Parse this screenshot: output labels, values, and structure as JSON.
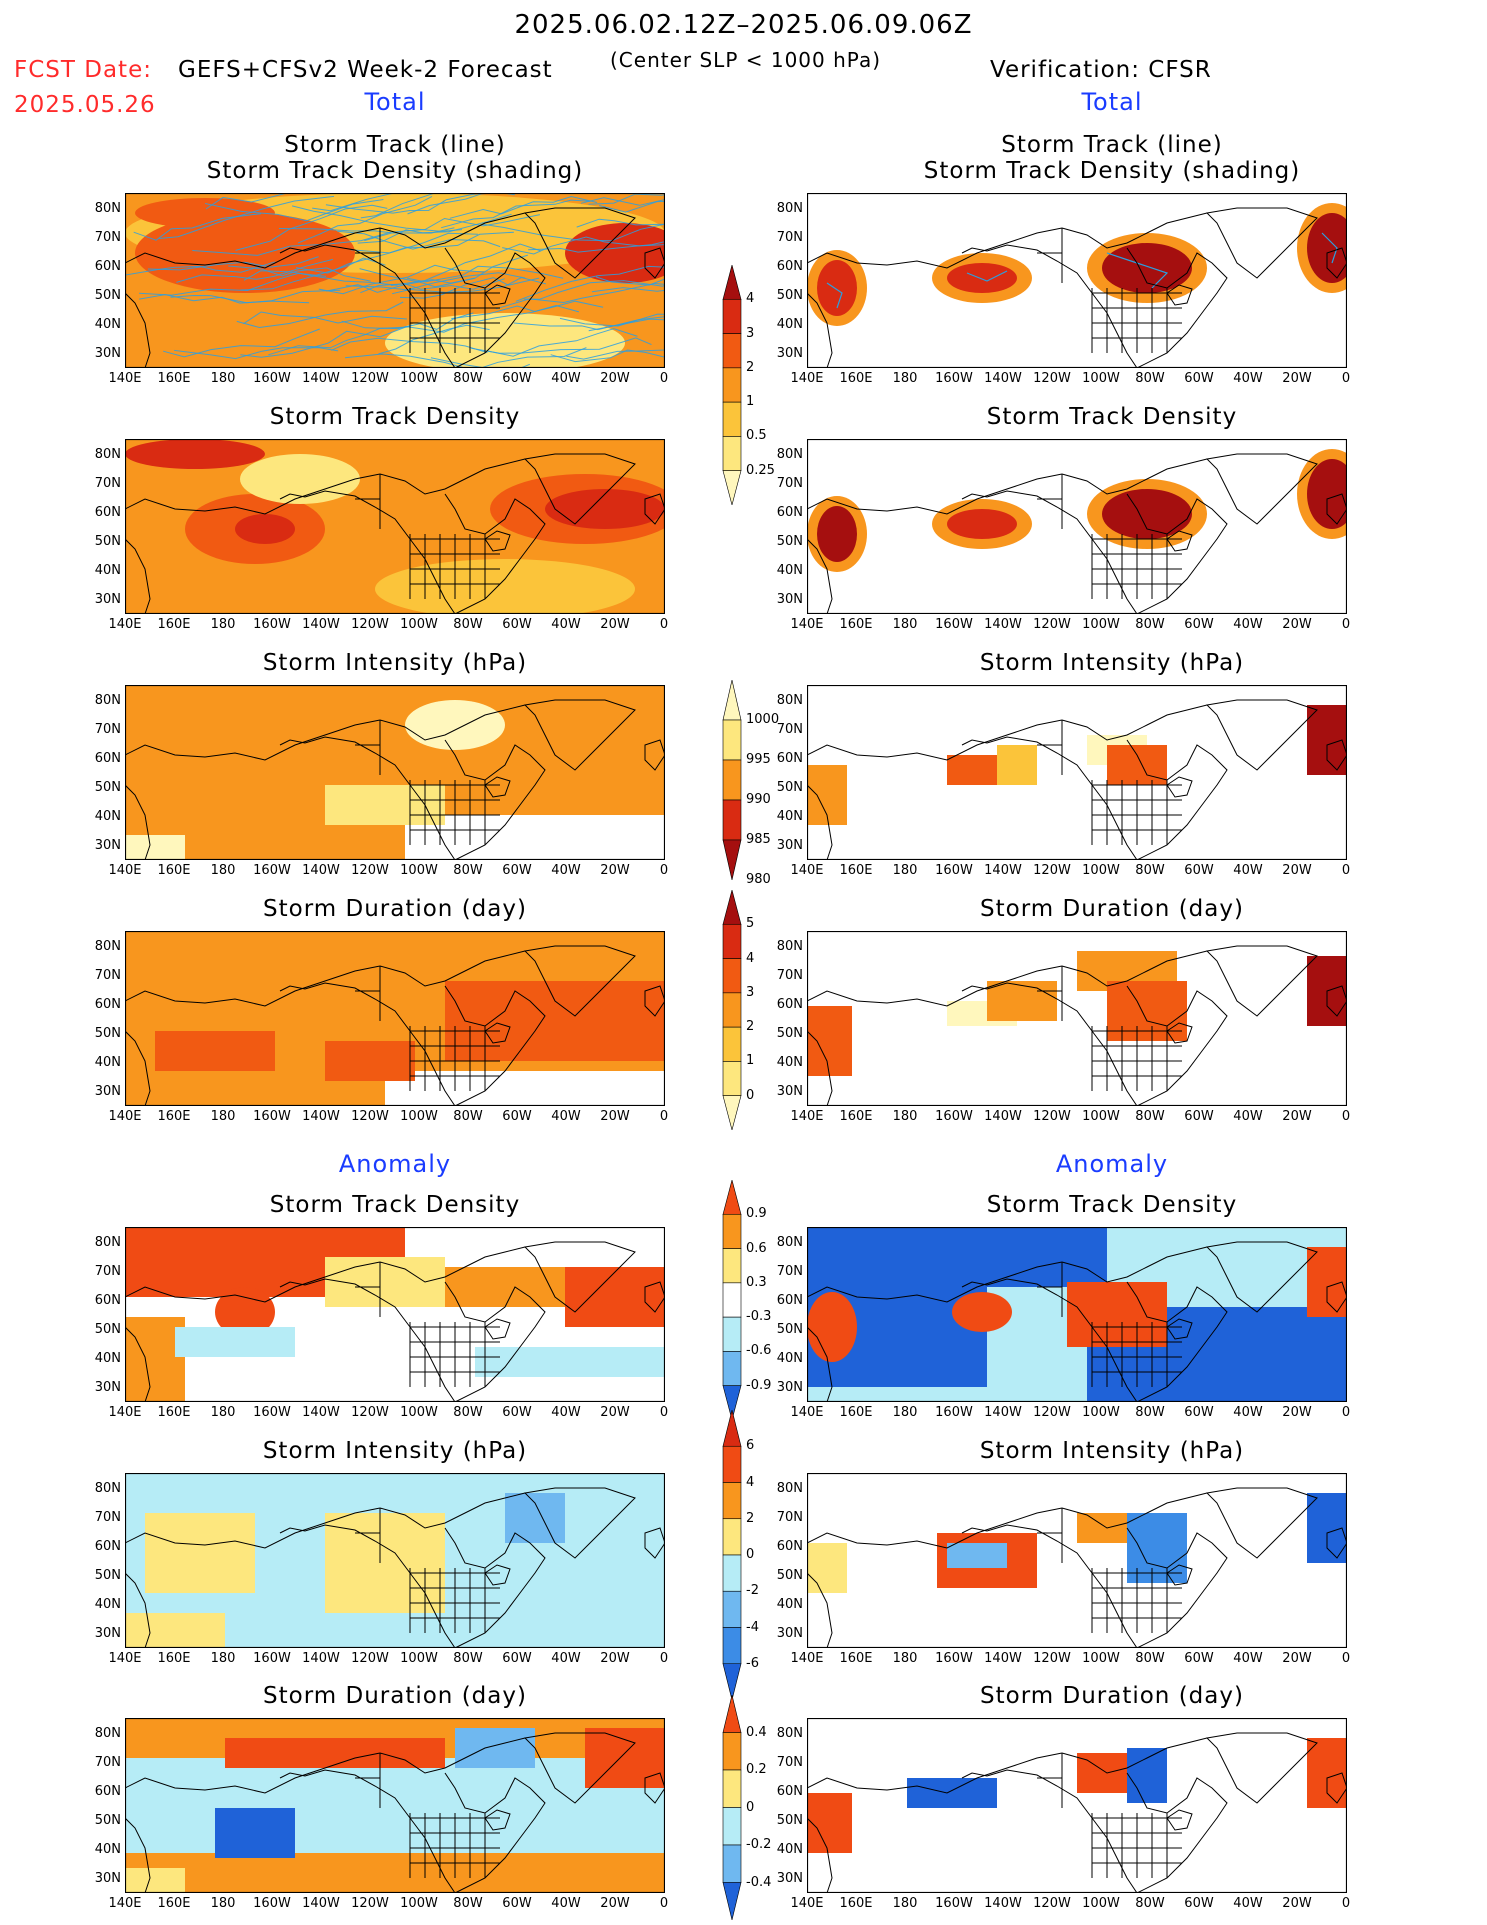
{
  "header": {
    "date_range": "2025.06.02.12Z–2025.06.09.06Z",
    "fcst_label": "FCST Date:",
    "fcst_date": "2025.05.26",
    "forecast_name": "GEFS+CFSv2 Week-2 Forecast",
    "criteria": "(Center SLP < 1000 hPa)",
    "verification": "Verification: CFSR"
  },
  "sections": {
    "total_left": "Total",
    "total_right": "Total",
    "anomaly_left": "Anomaly",
    "anomaly_right": "Anomaly"
  },
  "titles": {
    "track_line": "Storm Track (line)",
    "track_shading": "Storm Track Density (shading)",
    "density": "Storm Track Density",
    "intensity": "Storm Intensity (hPa)",
    "duration": "Storm Duration (day)"
  },
  "axes": {
    "lat_labels": [
      "80N",
      "70N",
      "60N",
      "50N",
      "40N",
      "30N"
    ],
    "lon_labels": [
      "140E",
      "160E",
      "180",
      "160W",
      "140W",
      "120W",
      "100W",
      "80W",
      "60W",
      "40W",
      "20W",
      "0"
    ]
  },
  "colorbars": {
    "density_total": {
      "labels": [
        "4",
        "3",
        "2",
        "1",
        "0.5",
        "0.25"
      ],
      "colors": [
        "#a50f0f",
        "#d92b12",
        "#f15a12",
        "#f8961e",
        "#fbc43a",
        "#fde77e",
        "#fff7bd"
      ]
    },
    "intensity_total": {
      "labels": [
        "1000",
        "995",
        "990",
        "985",
        "980"
      ],
      "colors": [
        "#fff7bd",
        "#fde77e",
        "#f8961e",
        "#d92b12",
        "#a50f0f"
      ]
    },
    "duration_total": {
      "labels": [
        "5",
        "4",
        "3",
        "2",
        "1",
        "0"
      ],
      "colors": [
        "#a50f0f",
        "#d92b12",
        "#f15a12",
        "#f8961e",
        "#fbc43a",
        "#fde77e",
        "#fff7bd"
      ]
    },
    "density_anom": {
      "labels": [
        "0.9",
        "0.6",
        "0.3",
        "-0.3",
        "-0.6",
        "-0.9"
      ],
      "colors": [
        "#f04b14",
        "#f8961e",
        "#fde77e",
        "#ffffff",
        "#b6ecf6",
        "#6fb8f0",
        "#1f62d8"
      ]
    },
    "intensity_anom": {
      "labels": [
        "6",
        "4",
        "2",
        "0",
        "-2",
        "-4",
        "-6"
      ],
      "colors": [
        "#d92b12",
        "#f04b14",
        "#f8961e",
        "#fde77e",
        "#b6ecf6",
        "#6fb8f0",
        "#3c8ce6",
        "#1f62d8"
      ]
    },
    "duration_anom": {
      "labels": [
        "0.4",
        "0.2",
        "0",
        "-0.2",
        "-0.4"
      ],
      "colors": [
        "#f04b14",
        "#f8961e",
        "#fde77e",
        "#b6ecf6",
        "#6fb8f0",
        "#1f62d8"
      ]
    }
  },
  "colors": {
    "red": "#ff2b2b",
    "blue_label": "#1a3cff",
    "land_outline": "#000000"
  }
}
